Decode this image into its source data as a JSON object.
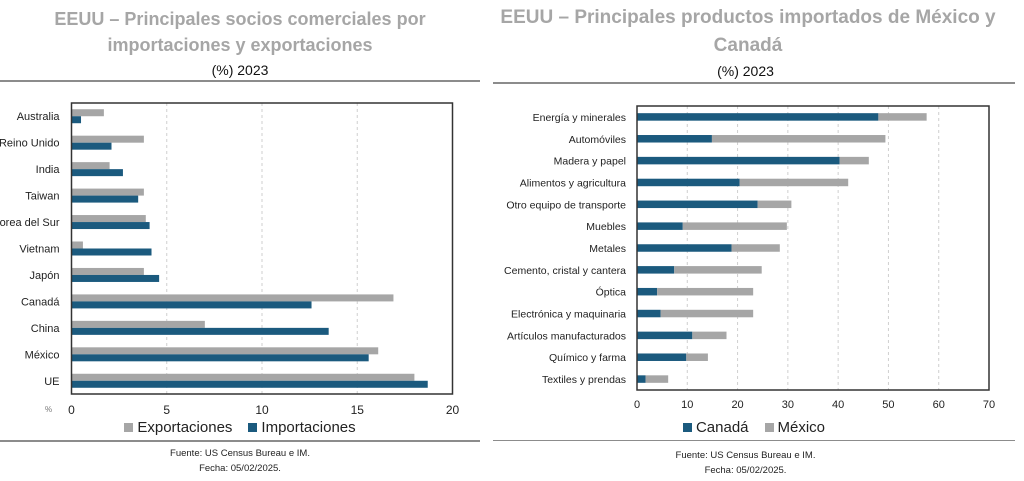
{
  "colors": {
    "gray": "#a6a6a6",
    "blue": "#1b5a7e"
  },
  "chart_data": [
    {
      "type": "bar",
      "orientation": "horizontal",
      "title": "EEUU – Principales socios comerciales por importaciones y exportaciones",
      "subtitle": "(%) 2023",
      "xlabel": "%",
      "xlim": [
        0,
        20
      ],
      "xticks": [
        0,
        5,
        10,
        15,
        20
      ],
      "categories": [
        "Australia",
        "Reino Unido",
        "India",
        "Taiwan",
        "Corea del Sur",
        "Vietnam",
        "Japón",
        "Canadá",
        "China",
        "México",
        "UE"
      ],
      "series": [
        {
          "name": "Exportaciones",
          "color": "#a6a6a6",
          "values": [
            1.7,
            3.8,
            2.0,
            3.8,
            3.9,
            0.6,
            3.8,
            16.9,
            7.0,
            16.1,
            18.0
          ]
        },
        {
          "name": "Importaciones",
          "color": "#1b5a7e",
          "values": [
            0.5,
            2.1,
            2.7,
            3.5,
            4.1,
            4.2,
            4.6,
            12.6,
            13.5,
            15.6,
            18.7
          ]
        }
      ],
      "grid": true,
      "legend": "bottom",
      "source": "Fuente: US Census Bureau e IM.",
      "date": "Fecha: 05/02/2025."
    },
    {
      "type": "bar",
      "orientation": "horizontal",
      "stacked": true,
      "title": "EEUU – Principales productos importados de México y Canadá",
      "subtitle": "(%) 2023",
      "xlim": [
        0,
        70
      ],
      "xticks": [
        0,
        10,
        20,
        30,
        40,
        50,
        60,
        70
      ],
      "categories": [
        "Energía y minerales",
        "Automóviles",
        "Madera y papel",
        "Alimentos y agricultura",
        "Otro equipo de transporte",
        "Muebles",
        "Metales",
        "Cemento, cristal y cantera",
        "Óptica",
        "Electrónica y maquinaria",
        "Artículos manufacturados",
        "Químico y farma",
        "Textiles y prendas"
      ],
      "series": [
        {
          "name": "Canadá",
          "color": "#1b5a7e",
          "values": [
            48.0,
            14.9,
            40.3,
            20.4,
            24.0,
            9.1,
            18.8,
            7.4,
            4.0,
            4.7,
            11.0,
            9.8,
            1.7
          ]
        },
        {
          "name": "México",
          "color": "#a6a6a6",
          "values": [
            9.6,
            34.5,
            5.8,
            21.6,
            6.7,
            20.7,
            9.6,
            17.4,
            19.1,
            18.4,
            6.8,
            4.3,
            4.5
          ]
        }
      ],
      "grid": true,
      "legend": "bottom",
      "source": "Fuente: US Census Bureau e IM.",
      "date": "Fecha: 05/02/2025."
    }
  ]
}
